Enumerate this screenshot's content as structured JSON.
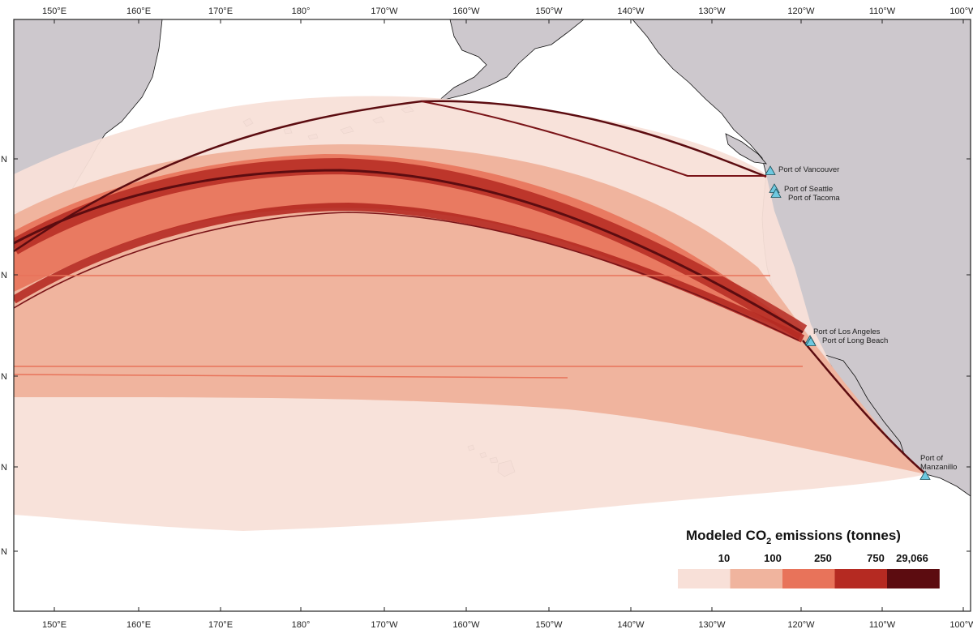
{
  "map": {
    "lon_ticks": [
      "150°E",
      "160°E",
      "170°E",
      "180°",
      "170°W",
      "160°W",
      "150°W",
      "140°W",
      "130°W",
      "120°W",
      "110°W",
      "100°W"
    ],
    "lat_tick_labels": [
      "N",
      "N",
      "N",
      "N",
      "N"
    ],
    "colors": {
      "land": "#cdc8cd",
      "ocean": "#ffffff",
      "marker": "#6ec9e0",
      "frame": "#222222"
    },
    "ports": [
      {
        "name": "Port of Vancouver",
        "lines": [
          "Port of Vancouver"
        ]
      },
      {
        "name": "Port of Seattle",
        "lines": [
          "Port of Seattle"
        ]
      },
      {
        "name": "Port of Tacoma",
        "lines": [
          "Port of Tacoma"
        ]
      },
      {
        "name": "Port of Los Angeles",
        "lines": [
          "Port of Los Angeles"
        ]
      },
      {
        "name": "Port of Long Beach",
        "lines": [
          "Port of Long Beach"
        ]
      },
      {
        "name": "Port of Manzanillo",
        "lines": [
          "Port of",
          "Manzanillo"
        ]
      }
    ]
  },
  "legend": {
    "title_prefix": "Modeled CO",
    "title_sub": "2",
    "title_suffix": " emissions (tonnes)",
    "classes": [
      {
        "label": "10",
        "color": "#f8e0d8"
      },
      {
        "label": "100",
        "color": "#f0b49e"
      },
      {
        "label": "250",
        "color": "#e8735a"
      },
      {
        "label": "750",
        "color": "#b52a22"
      },
      {
        "label": "29,066",
        "color": "#5c0c10"
      }
    ]
  }
}
